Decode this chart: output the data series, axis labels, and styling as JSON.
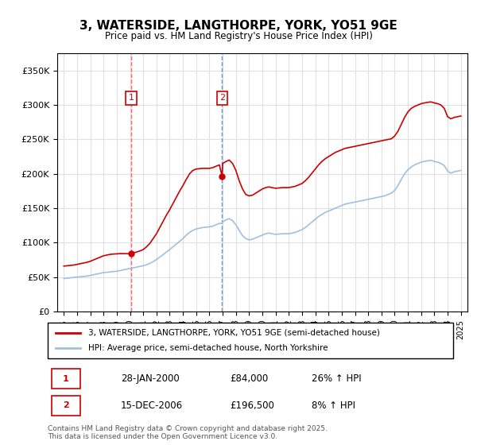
{
  "title": "3, WATERSIDE, LANGTHORPE, YORK, YO51 9GE",
  "subtitle": "Price paid vs. HM Land Registry's House Price Index (HPI)",
  "property_label": "3, WATERSIDE, LANGTHORPE, YORK, YO51 9GE (semi-detached house)",
  "hpi_label": "HPI: Average price, semi-detached house, North Yorkshire",
  "sale1_date": "28-JAN-2000",
  "sale1_price": "£84,000",
  "sale1_hpi": "26% ↑ HPI",
  "sale2_date": "15-DEC-2006",
  "sale2_price": "£196,500",
  "sale2_hpi": "8% ↑ HPI",
  "footer": "Contains HM Land Registry data © Crown copyright and database right 2025.\nThis data is licensed under the Open Government Licence v3.0.",
  "ylim": [
    0,
    375000
  ],
  "yticks": [
    0,
    50000,
    100000,
    150000,
    200000,
    250000,
    300000,
    350000
  ],
  "background_color": "#ffffff",
  "grid_color": "#e0e0e0",
  "property_line_color": "#cc0000",
  "hpi_line_color": "#a0c0e0",
  "vline1_color": "#ff6666",
  "vline2_color": "#6699cc",
  "sale1_x": 2000.08,
  "sale2_x": 2006.96,
  "property_hpi_data": {
    "years": [
      1995.0,
      1995.25,
      1995.5,
      1995.75,
      1996.0,
      1996.25,
      1996.5,
      1996.75,
      1997.0,
      1997.25,
      1997.5,
      1997.75,
      1998.0,
      1998.25,
      1998.5,
      1998.75,
      1999.0,
      1999.25,
      1999.5,
      1999.75,
      2000.0,
      2000.08,
      2000.25,
      2000.5,
      2000.75,
      2001.0,
      2001.25,
      2001.5,
      2001.75,
      2002.0,
      2002.25,
      2002.5,
      2002.75,
      2003.0,
      2003.25,
      2003.5,
      2003.75,
      2004.0,
      2004.25,
      2004.5,
      2004.75,
      2005.0,
      2005.25,
      2005.5,
      2005.75,
      2006.0,
      2006.25,
      2006.5,
      2006.75,
      2006.96,
      2007.0,
      2007.25,
      2007.5,
      2007.75,
      2008.0,
      2008.25,
      2008.5,
      2008.75,
      2009.0,
      2009.25,
      2009.5,
      2009.75,
      2010.0,
      2010.25,
      2010.5,
      2010.75,
      2011.0,
      2011.25,
      2011.5,
      2011.75,
      2012.0,
      2012.25,
      2012.5,
      2012.75,
      2013.0,
      2013.25,
      2013.5,
      2013.75,
      2014.0,
      2014.25,
      2014.5,
      2014.75,
      2015.0,
      2015.25,
      2015.5,
      2015.75,
      2016.0,
      2016.25,
      2016.5,
      2016.75,
      2017.0,
      2017.25,
      2017.5,
      2017.75,
      2018.0,
      2018.25,
      2018.5,
      2018.75,
      2019.0,
      2019.25,
      2019.5,
      2019.75,
      2020.0,
      2020.25,
      2020.5,
      2020.75,
      2021.0,
      2021.25,
      2021.5,
      2021.75,
      2022.0,
      2022.25,
      2022.5,
      2022.75,
      2023.0,
      2023.25,
      2023.5,
      2023.75,
      2024.0,
      2024.25,
      2024.5,
      2024.75,
      2025.0
    ],
    "property_values": [
      66000,
      66500,
      67000,
      67500,
      68500,
      69500,
      70500,
      71500,
      73000,
      75000,
      77000,
      79000,
      81000,
      82000,
      83000,
      83500,
      83800,
      84100,
      84100,
      84000,
      84000,
      84000,
      85000,
      86500,
      88000,
      90000,
      94000,
      99000,
      106000,
      113000,
      122000,
      131000,
      140000,
      148000,
      157000,
      166000,
      175000,
      183000,
      192000,
      200000,
      205000,
      207000,
      207500,
      208000,
      208000,
      208000,
      209000,
      211000,
      213000,
      196500,
      215000,
      218000,
      220000,
      215000,
      205000,
      190000,
      178000,
      170000,
      168000,
      169000,
      172000,
      175000,
      178000,
      180000,
      181000,
      180000,
      179000,
      179500,
      180000,
      180000,
      180000,
      181000,
      182000,
      184000,
      186000,
      190000,
      195000,
      201000,
      207000,
      213000,
      218000,
      222000,
      225000,
      228000,
      231000,
      233000,
      235000,
      237000,
      238000,
      239000,
      240000,
      241000,
      242000,
      243000,
      244000,
      245000,
      246000,
      247000,
      248000,
      249000,
      250000,
      251000,
      255000,
      262000,
      272000,
      282000,
      290000,
      295000,
      298000,
      300000,
      302000,
      303000,
      304000,
      304500,
      303000,
      302000,
      300000,
      295000,
      283000,
      280000,
      282000,
      283000,
      284000
    ],
    "hpi_values": [
      48000,
      48500,
      49000,
      49500,
      50000,
      50500,
      51000,
      51500,
      52500,
      53500,
      54500,
      55500,
      56500,
      57000,
      57500,
      58000,
      58500,
      59500,
      60500,
      61500,
      62500,
      62500,
      63500,
      64500,
      65500,
      66500,
      68000,
      70000,
      72500,
      75500,
      79000,
      82500,
      86500,
      90000,
      94000,
      98000,
      102000,
      106000,
      111000,
      115000,
      118000,
      120000,
      121000,
      122000,
      122500,
      123000,
      124000,
      126000,
      128000,
      128000,
      130000,
      133000,
      135000,
      132000,
      126000,
      118000,
      110000,
      106000,
      104000,
      105000,
      107000,
      109000,
      111000,
      113000,
      114000,
      113000,
      112000,
      112500,
      113000,
      113000,
      113000,
      114000,
      115000,
      117000,
      119000,
      122000,
      126000,
      130000,
      134000,
      138000,
      141000,
      144000,
      146000,
      148000,
      150000,
      152000,
      154000,
      156000,
      157000,
      158000,
      159000,
      160000,
      161000,
      162000,
      163000,
      164000,
      165000,
      166000,
      167000,
      168000,
      170000,
      172000,
      176000,
      183000,
      192000,
      200000,
      206000,
      210000,
      213000,
      215000,
      217000,
      218000,
      219000,
      219500,
      218000,
      217000,
      215000,
      212000,
      204000,
      201000,
      203000,
      204000,
      205000
    ]
  }
}
